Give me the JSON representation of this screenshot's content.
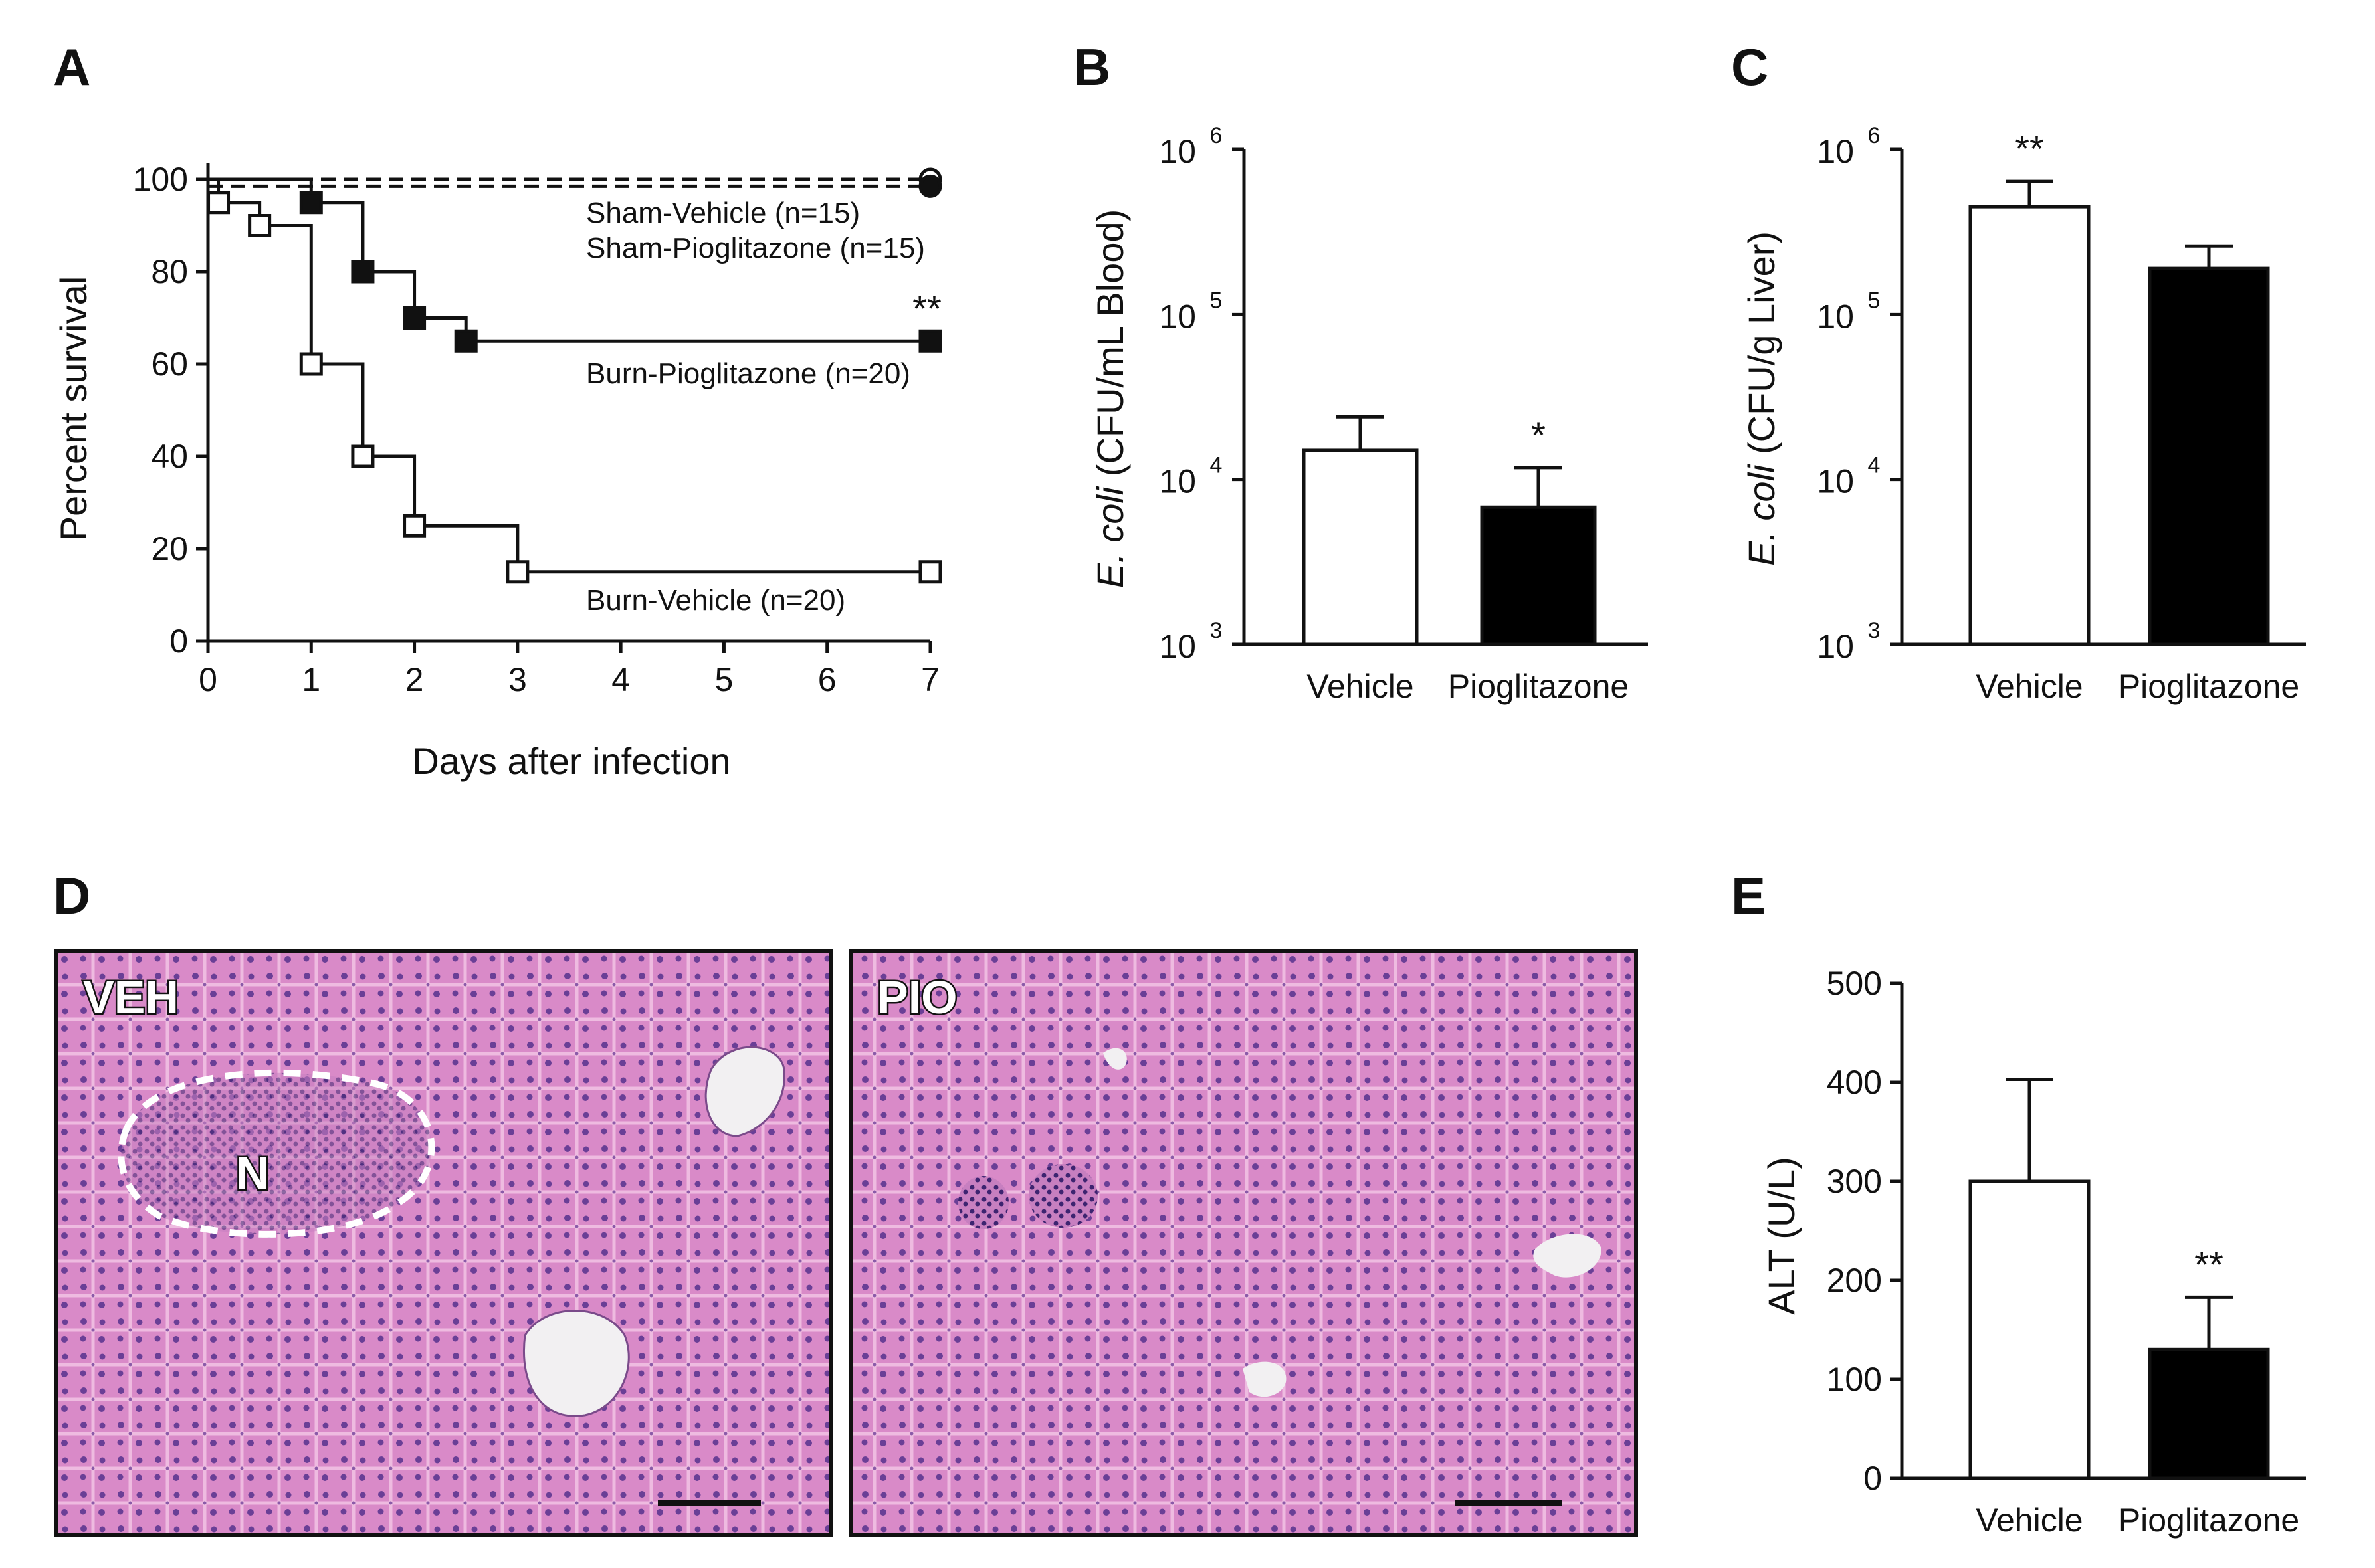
{
  "colors": {
    "axis": "#111111",
    "open_bar": "#ffffff",
    "filled_bar": "#000000",
    "tissue_base": "#d98ac8",
    "tissue_nuclei": "#5b3a8c",
    "vessel": "#f2f0f2"
  },
  "chart_data": [
    {
      "panel": "A",
      "type": "line",
      "xlabel": "Days after infection",
      "ylabel": "Percent survival",
      "xlim": [
        0,
        7
      ],
      "ylim": [
        0,
        100
      ],
      "x_ticks": [
        "0",
        "1",
        "2",
        "3",
        "4",
        "5",
        "6",
        "7"
      ],
      "y_ticks": [
        "0",
        "20",
        "40",
        "60",
        "80",
        "100"
      ],
      "series": [
        {
          "name": "Sham-Vehicle (n=15)",
          "style": "dashed",
          "marker": "open-circle",
          "x": [
            0,
            7
          ],
          "y": [
            100,
            100
          ]
        },
        {
          "name": "Sham-Pioglitazone (n=15)",
          "style": "dashed",
          "marker": "filled-circle",
          "x": [
            0,
            7
          ],
          "y": [
            98.5,
            98.5
          ]
        },
        {
          "name": "Burn-Pioglitazone (n=20)",
          "style": "step",
          "marker": "filled-square",
          "x": [
            0,
            1,
            1.5,
            2,
            2.5,
            7
          ],
          "y": [
            100,
            95,
            80,
            70,
            65,
            65
          ]
        },
        {
          "name": "Burn-Vehicle (n=20)",
          "style": "step",
          "marker": "open-square",
          "x": [
            0,
            0.1,
            0.5,
            1,
            1.5,
            2,
            3,
            7
          ],
          "y": [
            100,
            95,
            90,
            60,
            40,
            25,
            15,
            15
          ]
        }
      ],
      "annotations": [
        {
          "text": "**",
          "x": 7,
          "y": 65
        }
      ]
    },
    {
      "panel": "B",
      "type": "bar",
      "scale": "log",
      "ylabel_italic": "E. coli",
      "ylabel_rest": " (CFU/mL Blood)",
      "ylim": [
        1000,
        1000000
      ],
      "y_ticks": [
        {
          "base": "10",
          "exp": "3"
        },
        {
          "base": "10",
          "exp": "4"
        },
        {
          "base": "10",
          "exp": "5"
        },
        {
          "base": "10",
          "exp": "6"
        }
      ],
      "categories": [
        "Vehicle",
        "Pioglitazone"
      ],
      "values": [
        15000,
        6800
      ],
      "errors_upper": [
        24000,
        11800
      ],
      "fills": [
        "open",
        "filled"
      ],
      "significance": [
        "",
        "*"
      ]
    },
    {
      "panel": "C",
      "type": "bar",
      "scale": "log",
      "ylabel_italic": "E. coli",
      "ylabel_rest": " (CFU/g Liver)",
      "ylim": [
        1000,
        1000000
      ],
      "y_ticks": [
        {
          "base": "10",
          "exp": "3"
        },
        {
          "base": "10",
          "exp": "4"
        },
        {
          "base": "10",
          "exp": "5"
        },
        {
          "base": "10",
          "exp": "6"
        }
      ],
      "categories": [
        "Vehicle",
        "Pioglitazone"
      ],
      "values": [
        450000,
        190000
      ],
      "errors_upper": [
        640000,
        260000
      ],
      "fills": [
        "open",
        "filled"
      ],
      "significance": [
        "**",
        ""
      ]
    },
    {
      "panel": "E",
      "type": "bar",
      "scale": "linear",
      "ylabel": "ALT (U/L)",
      "ylim": [
        0,
        500
      ],
      "y_ticks": [
        "0",
        "100",
        "200",
        "300",
        "400",
        "500"
      ],
      "categories": [
        "Vehicle",
        "Pioglitazone"
      ],
      "values": [
        300,
        130
      ],
      "errors_upper": [
        403,
        183
      ],
      "fills": [
        "open",
        "filled"
      ],
      "significance": [
        "",
        "**"
      ]
    }
  ],
  "panel_letters": {
    "a": "A",
    "b": "B",
    "c": "C",
    "d": "D",
    "e": "E"
  },
  "micrographs": [
    {
      "label": "VEH",
      "region_label": "N"
    },
    {
      "label": "PIO",
      "region_label": ""
    }
  ]
}
